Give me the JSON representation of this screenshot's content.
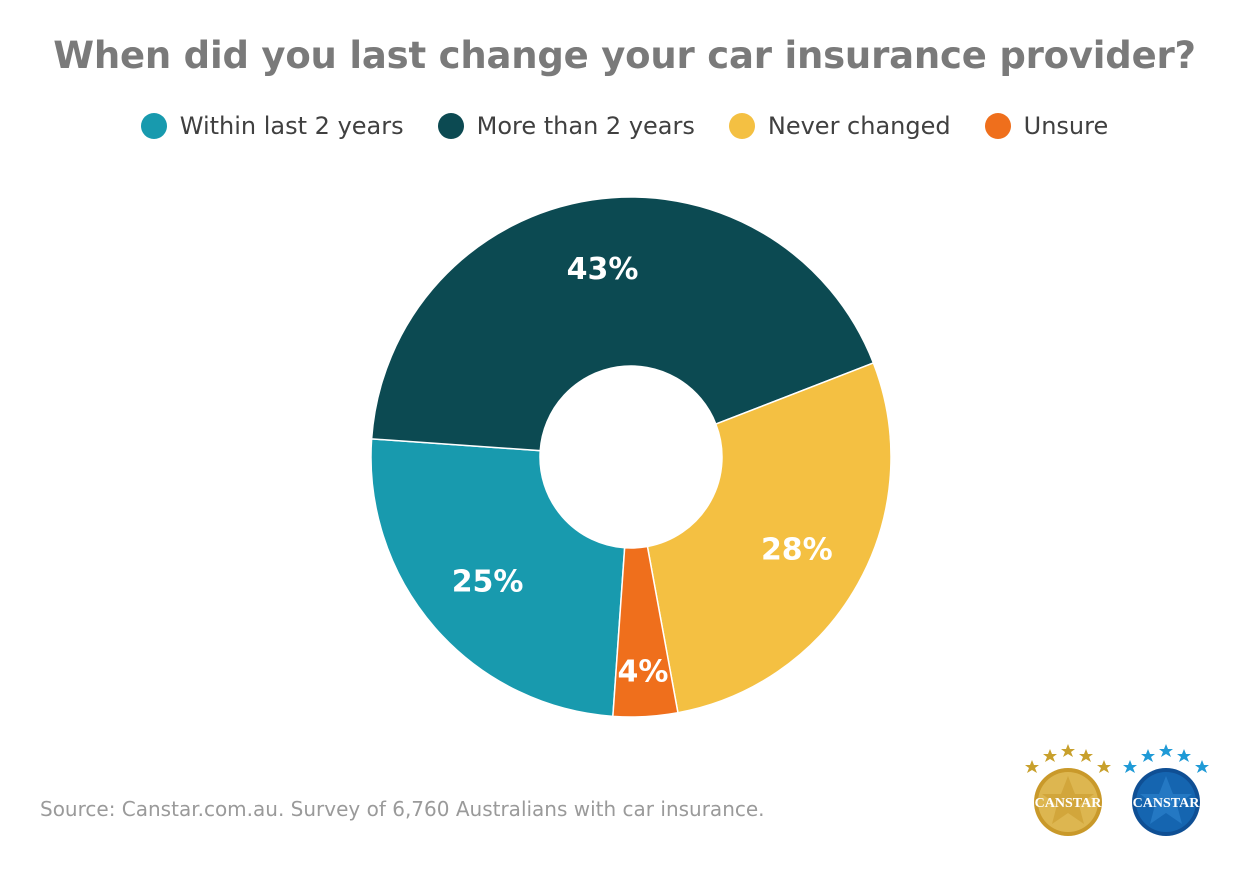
{
  "chart_data": {
    "type": "pie",
    "title": "When did you last change your car insurance provider?",
    "categories": [
      "Within last 2 years",
      "More than 2 years",
      "Never changed",
      "Unsure"
    ],
    "values": [
      25,
      43,
      28,
      4
    ],
    "labels": [
      "25%",
      "43%",
      "28%",
      "4%"
    ],
    "colors": [
      "#189aae",
      "#0c4a52",
      "#f4c042",
      "#ef6f1c"
    ],
    "donut": true,
    "legend_placement": "top"
  },
  "source_note": "Source: Canstar.com.au. Survey of 6,760 Australians with car insurance.",
  "badges": [
    {
      "text": "CANSTAR",
      "color": "#c8a02c",
      "icon": "canstar-gold-star-badge-icon"
    },
    {
      "text": "CANSTAR",
      "color": "#1565b0",
      "icon": "canstar-blue-star-badge-icon"
    }
  ]
}
